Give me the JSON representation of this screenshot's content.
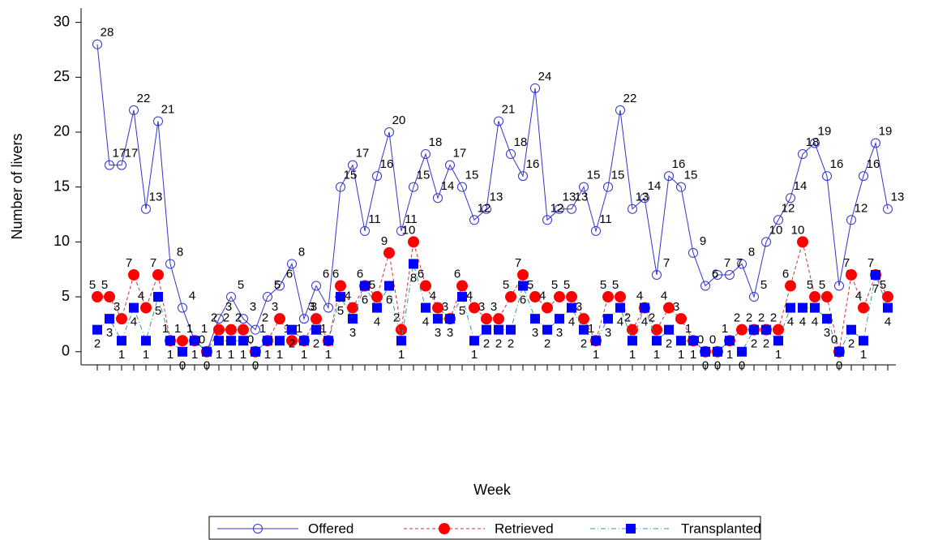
{
  "chart_data": {
    "type": "line",
    "x_label": "Week",
    "y_label": "Number of livers",
    "categories": [
      null,
      null,
      null,
      null,
      null,
      null,
      null,
      null,
      null,
      null,
      null,
      null,
      null,
      null,
      null,
      null,
      null,
      null,
      null,
      null,
      null,
      null,
      null,
      null,
      null,
      null,
      null,
      null,
      null,
      null,
      null,
      null,
      null,
      null,
      null,
      null,
      null,
      null,
      null,
      null,
      null,
      null,
      null,
      null,
      null,
      null,
      null,
      null,
      null,
      null,
      null,
      null,
      null,
      null,
      null,
      null,
      null,
      null,
      null,
      null,
      null,
      null,
      null,
      null,
      null,
      null
    ],
    "series": [
      {
        "name": "Offered",
        "color": "#3333cc",
        "marker": "open-circle",
        "dash": "solid",
        "values": [
          28,
          17,
          17,
          22,
          13,
          21,
          8,
          4,
          1,
          0,
          3,
          5,
          3,
          2,
          5,
          6,
          8,
          3,
          6,
          4,
          15,
          17,
          11,
          16,
          20,
          11,
          15,
          18,
          14,
          17,
          15,
          12,
          13,
          21,
          18,
          16,
          24,
          12,
          13,
          13,
          15,
          11,
          15,
          22,
          13,
          14,
          7,
          16,
          15,
          9,
          6,
          7,
          7,
          8,
          5,
          10,
          12,
          14,
          18,
          19,
          16,
          6,
          12,
          16,
          19,
          13
        ]
      },
      {
        "name": "Retrieved",
        "color": "#ff0000",
        "marker": "circle",
        "dash": "dashed",
        "values": [
          5,
          5,
          3,
          7,
          4,
          7,
          1,
          1,
          1,
          0,
          2,
          2,
          2,
          0,
          1,
          3,
          1,
          1,
          3,
          1,
          6,
          4,
          6,
          5,
          9,
          2,
          10,
          6,
          4,
          3,
          6,
          4,
          3,
          3,
          5,
          7,
          5,
          4,
          5,
          5,
          3,
          1,
          5,
          5,
          2,
          4,
          2,
          4,
          3,
          1,
          0,
          0,
          1,
          2,
          2,
          2,
          2,
          6,
          10,
          5,
          5,
          0,
          7,
          4,
          7,
          5
        ]
      },
      {
        "name": "Transplanted",
        "color": "#0000ff",
        "marker": "square",
        "dash": "dashdot",
        "values": [
          2,
          3,
          1,
          4,
          1,
          5,
          1,
          0,
          1,
          0,
          1,
          1,
          1,
          0,
          1,
          1,
          2,
          1,
          2,
          1,
          5,
          3,
          6,
          4,
          6,
          1,
          8,
          4,
          3,
          3,
          5,
          1,
          2,
          2,
          2,
          6,
          3,
          2,
          3,
          4,
          2,
          1,
          3,
          4,
          1,
          4,
          1,
          2,
          1,
          1,
          0,
          0,
          1,
          0,
          2,
          2,
          1,
          4,
          4,
          4,
          3,
          0,
          2,
          1,
          7,
          4
        ]
      }
    ],
    "ylim": [
      -1.2,
      31.3
    ],
    "yticks": [
      0,
      5,
      10,
      15,
      20,
      25,
      30
    ],
    "legend": "bottom"
  }
}
